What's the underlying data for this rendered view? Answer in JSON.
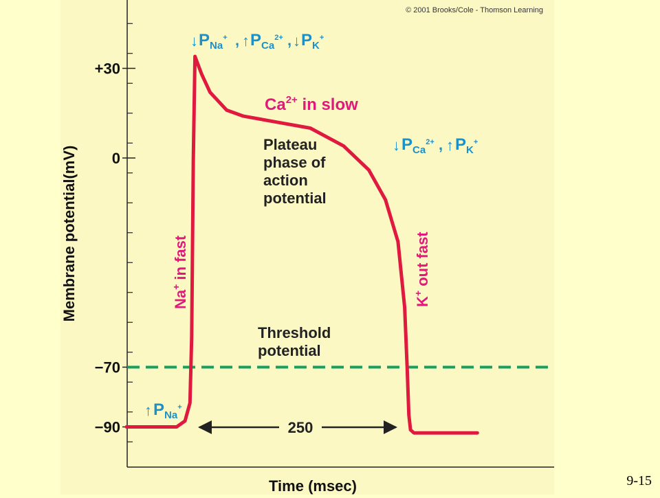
{
  "copyright": "© 2001 Brooks/Cole - Thomson Learning",
  "slide_number": "9-15",
  "colors": {
    "background": "#FFFFCC",
    "panel": "#FCF8C4",
    "curve": "#E0193F",
    "threshold": "#13A060",
    "annotation_blue": "#1E90C8",
    "annotation_pink": "#E0197A",
    "axis": "#222222"
  },
  "chart_data": {
    "type": "line",
    "title": "",
    "xlabel": "Time (msec)",
    "ylabel": "Membrane potential(mV)",
    "ylim": [
      -97,
      50
    ],
    "y_ticks": [
      {
        "value": 30,
        "label": "+30"
      },
      {
        "value": 0,
        "label": "0"
      },
      {
        "value": -70,
        "label": "−70"
      },
      {
        "value": -90,
        "label": "−90"
      }
    ],
    "threshold": {
      "value": -70,
      "label_lines": [
        "Threshold",
        "potential"
      ]
    },
    "series": [
      {
        "x": [
          0,
          60,
          70,
          76,
          78,
          80,
          82,
          90,
          100,
          120,
          140,
          180,
          220,
          260,
          290,
          310,
          325,
          333,
          336,
          338,
          340,
          344,
          350,
          380,
          420
        ],
        "y": [
          -90,
          -90,
          -88,
          -82,
          -60,
          0,
          34,
          28,
          22,
          16,
          14,
          12,
          10,
          4,
          -4,
          -14,
          -28,
          -50,
          -70,
          -86,
          -91,
          -92,
          -92,
          -92,
          -92
        ]
      }
    ],
    "annotations": {
      "depol_perm": [
        "P",
        "Na",
        "+",
        "P",
        "Ca",
        "2+",
        "P",
        "K",
        "+"
      ],
      "ca_in": [
        "Ca",
        "2+",
        " in slow"
      ],
      "plateau_lines": [
        "Plateau",
        "phase of",
        "action",
        "potential"
      ],
      "repol_perm": [
        "P",
        "Ca",
        "2+",
        "P",
        "K",
        "+"
      ],
      "na_in": [
        "Na",
        "+",
        " in fast"
      ],
      "k_out": [
        "K",
        "+",
        " out fast"
      ],
      "rest_perm": [
        "P",
        "Na",
        "+"
      ],
      "duration": "250"
    }
  }
}
